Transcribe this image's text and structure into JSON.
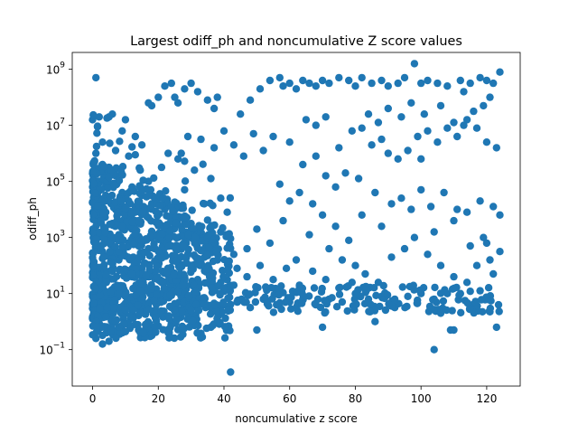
{
  "chart_data": {
    "type": "scatter",
    "title": "Largest odiff_ph and noncumulative Z score values",
    "xlabel": "noncumulative z score",
    "ylabel": "odiff_ph",
    "xlim": [
      -6.2,
      130.2
    ],
    "ylim_log10": [
      -2.3,
      9.6
    ],
    "yscale": "log",
    "grid": false,
    "marker_color": "#1f77b4",
    "x_ticks": [
      {
        "value": 0,
        "label": "0"
      },
      {
        "value": 20,
        "label": "20"
      },
      {
        "value": 40,
        "label": "40"
      },
      {
        "value": 60,
        "label": "60"
      },
      {
        "value": 80,
        "label": "80"
      },
      {
        "value": 100,
        "label": "100"
      },
      {
        "value": 120,
        "label": "120"
      }
    ],
    "y_ticks": [
      {
        "exp": -1,
        "base": "10",
        "sup": "−1"
      },
      {
        "exp": 1,
        "base": "10",
        "sup": "1"
      },
      {
        "exp": 3,
        "base": "10",
        "sup": "3"
      },
      {
        "exp": 5,
        "base": "10",
        "sup": "5"
      },
      {
        "exp": 7,
        "base": "10",
        "sup": "7"
      },
      {
        "exp": 9,
        "base": "10",
        "sup": "9"
      }
    ],
    "points_log10y": [
      [
        1,
        8.7
      ],
      [
        42,
        -1.8
      ],
      [
        98,
        9.2
      ],
      [
        104,
        -1.0
      ],
      [
        123,
        -0.2
      ],
      [
        109,
        -0.3
      ],
      [
        110,
        -0.3
      ],
      [
        0,
        7.2
      ],
      [
        2,
        7.3
      ],
      [
        5,
        7.3
      ],
      [
        6,
        7.4
      ],
      [
        10,
        7.2
      ],
      [
        17,
        7.8
      ],
      [
        18,
        7.7
      ],
      [
        20,
        8.0
      ],
      [
        22,
        8.4
      ],
      [
        24,
        8.5
      ],
      [
        25,
        8.0
      ],
      [
        26,
        7.8
      ],
      [
        28,
        8.3
      ],
      [
        30,
        8.5
      ],
      [
        32,
        8.2
      ],
      [
        35,
        7.9
      ],
      [
        37,
        7.6
      ],
      [
        38,
        8.0
      ],
      [
        45,
        7.4
      ],
      [
        48,
        7.9
      ],
      [
        51,
        8.3
      ],
      [
        54,
        8.6
      ],
      [
        57,
        8.7
      ],
      [
        58,
        8.4
      ],
      [
        60,
        8.5
      ],
      [
        62,
        8.3
      ],
      [
        64,
        8.6
      ],
      [
        66,
        8.5
      ],
      [
        68,
        8.4
      ],
      [
        70,
        8.6
      ],
      [
        72,
        8.5
      ],
      [
        75,
        8.7
      ],
      [
        78,
        8.6
      ],
      [
        80,
        8.4
      ],
      [
        82,
        8.7
      ],
      [
        85,
        8.5
      ],
      [
        88,
        8.6
      ],
      [
        90,
        8.4
      ],
      [
        93,
        8.5
      ],
      [
        95,
        8.7
      ],
      [
        100,
        8.5
      ],
      [
        102,
        8.6
      ],
      [
        105,
        8.5
      ],
      [
        108,
        8.4
      ],
      [
        112,
        8.6
      ],
      [
        115,
        8.5
      ],
      [
        118,
        8.7
      ],
      [
        120,
        8.6
      ],
      [
        122,
        8.5
      ],
      [
        124,
        8.9
      ],
      [
        113,
        8.2
      ],
      [
        116,
        7.5
      ],
      [
        119,
        7.7
      ],
      [
        121,
        8.0
      ],
      [
        75,
        6.2
      ],
      [
        79,
        6.8
      ],
      [
        82,
        6.9
      ],
      [
        85,
        6.3
      ],
      [
        88,
        6.5
      ],
      [
        90,
        6.0
      ],
      [
        93,
        5.8
      ],
      [
        96,
        6.1
      ],
      [
        99,
        6.6
      ],
      [
        102,
        6.8
      ],
      [
        105,
        6.4
      ],
      [
        108,
        6.9
      ],
      [
        111,
        6.6
      ],
      [
        114,
        7.2
      ],
      [
        117,
        6.9
      ],
      [
        120,
        6.4
      ],
      [
        123,
        6.2
      ],
      [
        60,
        6.4
      ],
      [
        64,
        5.6
      ],
      [
        68,
        5.9
      ],
      [
        71,
        5.2
      ],
      [
        74,
        4.8
      ],
      [
        77,
        5.3
      ],
      [
        81,
        5.1
      ],
      [
        86,
        4.6
      ],
      [
        91,
        4.2
      ],
      [
        94,
        4.4
      ],
      [
        97,
        4.0
      ],
      [
        100,
        4.7
      ],
      [
        103,
        4.1
      ],
      [
        107,
        4.6
      ],
      [
        111,
        4.0
      ],
      [
        114,
        3.9
      ],
      [
        118,
        4.3
      ],
      [
        122,
        4.1
      ],
      [
        124,
        3.8
      ],
      [
        120,
        2.8
      ],
      [
        124,
        2.5
      ],
      [
        122,
        1.7
      ],
      [
        118,
        1.1
      ],
      [
        112,
        1.0
      ],
      [
        108,
        1.0
      ],
      [
        104,
        0.8
      ],
      [
        100,
        1.0
      ],
      [
        96,
        0.9
      ],
      [
        92,
        0.8
      ],
      [
        88,
        0.9
      ],
      [
        84,
        0.8
      ],
      [
        80,
        1.0
      ],
      [
        76,
        0.7
      ],
      [
        72,
        0.8
      ],
      [
        68,
        0.6
      ],
      [
        64,
        0.8
      ],
      [
        60,
        0.7
      ],
      [
        56,
        0.6
      ],
      [
        52,
        0.8
      ],
      [
        48,
        0.5
      ],
      [
        44,
        0.7
      ],
      [
        40,
        0.6
      ],
      [
        36,
        0.5
      ],
      [
        32,
        0.6
      ],
      [
        28,
        0.4
      ],
      [
        24,
        0.5
      ],
      [
        20,
        0.3
      ],
      [
        16,
        0.4
      ],
      [
        12,
        0.3
      ],
      [
        8,
        0.5
      ],
      [
        4,
        0.4
      ],
      [
        2,
        0.2
      ],
      [
        0,
        0.1
      ],
      [
        1,
        -0.6
      ],
      [
        3,
        -0.8
      ],
      [
        5,
        -0.7
      ],
      [
        9,
        -0.4
      ],
      [
        14,
        -0.3
      ],
      [
        18,
        -0.5
      ],
      [
        24,
        -0.1
      ],
      [
        30,
        0.1
      ],
      [
        36,
        -0.2
      ],
      [
        50,
        -0.3
      ],
      [
        70,
        -0.2
      ],
      [
        86,
        0.0
      ],
      [
        92,
        0.5
      ],
      [
        106,
        0.3
      ],
      [
        100,
        5.8
      ],
      [
        104,
        3.2
      ],
      [
        110,
        3.6
      ],
      [
        115,
        2.7
      ],
      [
        119,
        3.0
      ],
      [
        88,
        3.4
      ],
      [
        82,
        3.8
      ],
      [
        78,
        2.9
      ],
      [
        72,
        2.6
      ],
      [
        66,
        3.1
      ],
      [
        62,
        2.2
      ],
      [
        58,
        3.6
      ],
      [
        54,
        2.8
      ],
      [
        50,
        3.3
      ],
      [
        47,
        2.6
      ],
      [
        44,
        1.9
      ],
      [
        41,
        3.9
      ],
      [
        39,
        4.4
      ],
      [
        36,
        5.1
      ],
      [
        34,
        4.2
      ],
      [
        31,
        5.4
      ],
      [
        28,
        4.7
      ],
      [
        26,
        5.8
      ],
      [
        23,
        6.0
      ],
      [
        21,
        5.5
      ],
      [
        19,
        4.3
      ],
      [
        17,
        5.0
      ],
      [
        15,
        6.3
      ],
      [
        13,
        6.6
      ],
      [
        11,
        5.9
      ],
      [
        9,
        6.8
      ],
      [
        7,
        6.1
      ],
      [
        5,
        5.5
      ],
      [
        3,
        6.4
      ],
      [
        1,
        6.0
      ],
      [
        55,
        6.6
      ],
      [
        52,
        6.1
      ],
      [
        49,
        6.7
      ],
      [
        46,
        5.9
      ],
      [
        43,
        6.3
      ],
      [
        40,
        6.8
      ],
      [
        37,
        6.2
      ],
      [
        33,
        6.5
      ],
      [
        29,
        6.6
      ],
      [
        27,
        6.0
      ],
      [
        65,
        7.2
      ],
      [
        68,
        7.0
      ],
      [
        71,
        7.3
      ],
      [
        84,
        7.4
      ],
      [
        87,
        7.1
      ],
      [
        90,
        7.6
      ],
      [
        94,
        7.3
      ],
      [
        97,
        7.8
      ],
      [
        101,
        7.4
      ],
      [
        106,
        7.7
      ],
      [
        110,
        7.1
      ],
      [
        113,
        7.0
      ],
      [
        60,
        4.3
      ],
      [
        57,
        4.9
      ],
      [
        63,
        4.6
      ],
      [
        67,
        4.2
      ],
      [
        70,
        3.8
      ],
      [
        74,
        3.4
      ],
      [
        76,
        2.2
      ],
      [
        80,
        2.0
      ],
      [
        83,
        1.7
      ],
      [
        87,
        1.4
      ],
      [
        91,
        2.3
      ],
      [
        95,
        2.6
      ],
      [
        98,
        3.0
      ],
      [
        102,
        2.4
      ],
      [
        106,
        2.0
      ],
      [
        110,
        1.6
      ],
      [
        114,
        1.4
      ],
      [
        117,
        2.0
      ],
      [
        121,
        2.2
      ],
      [
        30,
        3.5
      ],
      [
        33,
        2.9
      ],
      [
        26,
        3.0
      ],
      [
        22,
        2.4
      ],
      [
        18,
        3.2
      ],
      [
        14,
        2.7
      ],
      [
        10,
        3.4
      ],
      [
        6,
        2.9
      ],
      [
        2,
        3.6
      ],
      [
        4,
        4.5
      ],
      [
        8,
        4.1
      ],
      [
        12,
        4.8
      ],
      [
        16,
        3.9
      ],
      [
        20,
        4.4
      ],
      [
        24,
        3.7
      ],
      [
        35,
        1.8
      ],
      [
        39,
        1.4
      ],
      [
        43,
        2.4
      ],
      [
        47,
        1.6
      ],
      [
        51,
        2.0
      ],
      [
        55,
        1.5
      ],
      [
        59,
        1.9
      ],
      [
        63,
        1.3
      ],
      [
        67,
        1.8
      ],
      [
        71,
        1.5
      ],
      [
        75,
        1.2
      ],
      [
        79,
        1.4
      ],
      [
        0,
        2.0
      ],
      [
        1,
        1.5
      ],
      [
        2,
        1.0
      ],
      [
        3,
        2.5
      ],
      [
        4,
        0.5
      ],
      [
        5,
        3.0
      ],
      [
        6,
        1.8
      ],
      [
        7,
        4.0
      ],
      [
        8,
        2.2
      ],
      [
        9,
        1.2
      ],
      [
        10,
        0.9
      ],
      [
        11,
        2.8
      ],
      [
        12,
        1.6
      ],
      [
        13,
        3.6
      ],
      [
        14,
        1.9
      ],
      [
        15,
        2.3
      ],
      [
        16,
        1.1
      ],
      [
        17,
        2.6
      ],
      [
        18,
        1.7
      ],
      [
        19,
        3.1
      ],
      [
        20,
        2.0
      ],
      [
        21,
        1.4
      ],
      [
        22,
        3.3
      ],
      [
        23,
        1.8
      ],
      [
        24,
        2.7
      ],
      [
        25,
        1.3
      ],
      [
        26,
        2.2
      ],
      [
        27,
        3.4
      ],
      [
        28,
        1.6
      ],
      [
        29,
        2.4
      ],
      [
        30,
        1.9
      ],
      [
        31,
        2.9
      ],
      [
        32,
        1.5
      ],
      [
        33,
        2.1
      ],
      [
        34,
        3.0
      ],
      [
        35,
        2.5
      ],
      [
        36,
        1.7
      ],
      [
        37,
        2.8
      ],
      [
        38,
        2.2
      ],
      [
        39,
        3.2
      ],
      [
        0,
        4.8
      ],
      [
        1,
        5.3
      ],
      [
        2,
        4.4
      ],
      [
        3,
        5.6
      ],
      [
        4,
        3.9
      ],
      [
        5,
        4.9
      ],
      [
        6,
        3.5
      ],
      [
        7,
        5.2
      ],
      [
        8,
        3.1
      ],
      [
        9,
        4.6
      ],
      [
        10,
        3.8
      ],
      [
        11,
        4.3
      ],
      [
        12,
        3.3
      ],
      [
        13,
        4.1
      ],
      [
        14,
        3.6
      ],
      [
        15,
        4.5
      ],
      [
        16,
        2.9
      ],
      [
        17,
        3.7
      ],
      [
        18,
        4.2
      ],
      [
        19,
        2.6
      ],
      [
        20,
        3.5
      ],
      [
        21,
        3.0
      ],
      [
        22,
        4.0
      ],
      [
        23,
        2.8
      ],
      [
        24,
        3.3
      ]
    ]
  }
}
